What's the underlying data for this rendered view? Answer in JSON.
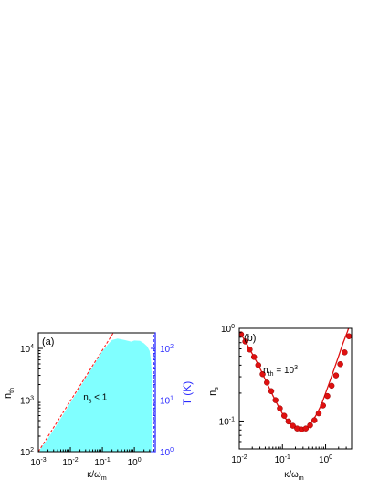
{
  "chart_data": [
    {
      "type": "area",
      "panel_label": "(a)",
      "x_scale": "log",
      "y_scale": "log",
      "xlim": [
        0.001,
        4.5
      ],
      "ylim": [
        100,
        20000
      ],
      "ylabel_main": "n",
      "ylabel_sub": "th",
      "xlabel_main": "κ/ω",
      "xlabel_sub": "m",
      "ylabel_right_main": "T (K)",
      "y2_scale": "log",
      "y2lim": [
        1,
        200
      ],
      "x_ticks": [
        {
          "value": 0.001,
          "base": "10",
          "exp": "-3"
        },
        {
          "value": 0.01,
          "base": "10",
          "exp": "-2"
        },
        {
          "value": 0.1,
          "base": "10",
          "exp": "-1"
        },
        {
          "value": 1,
          "base": "10",
          "exp": "0"
        }
      ],
      "y_ticks": [
        {
          "value": 100,
          "base": "10",
          "exp": "2"
        },
        {
          "value": 1000,
          "base": "10",
          "exp": "3"
        },
        {
          "value": 10000,
          "base": "10",
          "exp": "4"
        }
      ],
      "y2_ticks": [
        {
          "value": 1,
          "base": "10",
          "exp": "0"
        },
        {
          "value": 10,
          "base": "10",
          "exp": "1"
        },
        {
          "value": 100,
          "base": "10",
          "exp": "2"
        }
      ],
      "annotation": {
        "main": "n",
        "sub": "s",
        "rest": " < 1",
        "x": 0.06,
        "y": 1000
      },
      "region": {
        "fill": "#80ffff",
        "x": [
          0.001,
          0.002,
          0.005,
          0.01,
          0.02,
          0.05,
          0.1,
          0.15,
          0.2,
          0.3,
          0.5,
          0.8,
          1.0,
          1.5,
          2.0,
          2.5,
          3.0,
          3.3,
          3.5,
          3.5
        ],
        "y": [
          100,
          180,
          440,
          880,
          1760,
          4400,
          8800,
          12000,
          14500,
          15500,
          14500,
          13500,
          14200,
          14000,
          12500,
          11000,
          9000,
          6000,
          3000,
          100
        ]
      },
      "series": [
        {
          "style": "dashed",
          "color": "#ff2020",
          "x": [
            0.001,
            0.22
          ],
          "y": [
            100,
            20000
          ]
        },
        {
          "style": "dashed",
          "color": "#2a2aff",
          "x": [
            4.0,
            4.0
          ],
          "y": [
            100,
            20000
          ]
        }
      ]
    },
    {
      "type": "line",
      "panel_label": "(b)",
      "x_scale": "log",
      "y_scale": "log",
      "xlim": [
        0.01,
        4
      ],
      "ylim": [
        0.05,
        1
      ],
      "ylabel_main": "n",
      "ylabel_sub": "s",
      "xlabel_main": "κ/ω",
      "xlabel_sub": "m",
      "x_ticks": [
        {
          "value": 0.01,
          "base": "10",
          "exp": "-2"
        },
        {
          "value": 0.1,
          "base": "10",
          "exp": "-1"
        },
        {
          "value": 1,
          "base": "10",
          "exp": "0"
        }
      ],
      "y_ticks": [
        {
          "value": 0.1,
          "base": "10",
          "exp": "-1"
        },
        {
          "value": 1,
          "base": "10",
          "exp": "0"
        }
      ],
      "annotation": {
        "main": "n",
        "sub": "th",
        "rest": " = 10",
        "sup": "3",
        "x": 0.09,
        "y": 0.33
      },
      "series": [
        {
          "style": "line",
          "color": "#e01010",
          "x": [
            0.01,
            0.0125,
            0.016,
            0.02,
            0.025,
            0.032,
            0.04,
            0.05,
            0.063,
            0.08,
            0.1,
            0.125,
            0.16,
            0.2,
            0.25,
            0.32,
            0.4,
            0.5,
            0.63,
            0.8,
            1.0,
            1.26,
            1.6,
            2.0,
            2.5,
            3.2,
            4.0
          ],
          "y": [
            0.92,
            0.78,
            0.64,
            0.53,
            0.44,
            0.35,
            0.28,
            0.225,
            0.18,
            0.145,
            0.12,
            0.103,
            0.091,
            0.084,
            0.081,
            0.082,
            0.088,
            0.1,
            0.12,
            0.15,
            0.2,
            0.27,
            0.37,
            0.5,
            0.68,
            0.92,
            1.25
          ]
        },
        {
          "style": "markers",
          "color": "#e01010",
          "x": [
            0.011,
            0.0138,
            0.0174,
            0.022,
            0.0275,
            0.0347,
            0.0437,
            0.055,
            0.0692,
            0.0871,
            0.11,
            0.138,
            0.174,
            0.219,
            0.276,
            0.347,
            0.437,
            0.55,
            0.692,
            0.871,
            1.1,
            1.38,
            1.74,
            2.19,
            2.76,
            3.47
          ],
          "y": [
            0.86,
            0.72,
            0.59,
            0.49,
            0.4,
            0.32,
            0.26,
            0.21,
            0.168,
            0.137,
            0.114,
            0.099,
            0.089,
            0.083,
            0.081,
            0.083,
            0.09,
            0.102,
            0.121,
            0.147,
            0.186,
            0.24,
            0.31,
            0.41,
            0.55,
            0.82
          ]
        }
      ]
    }
  ]
}
